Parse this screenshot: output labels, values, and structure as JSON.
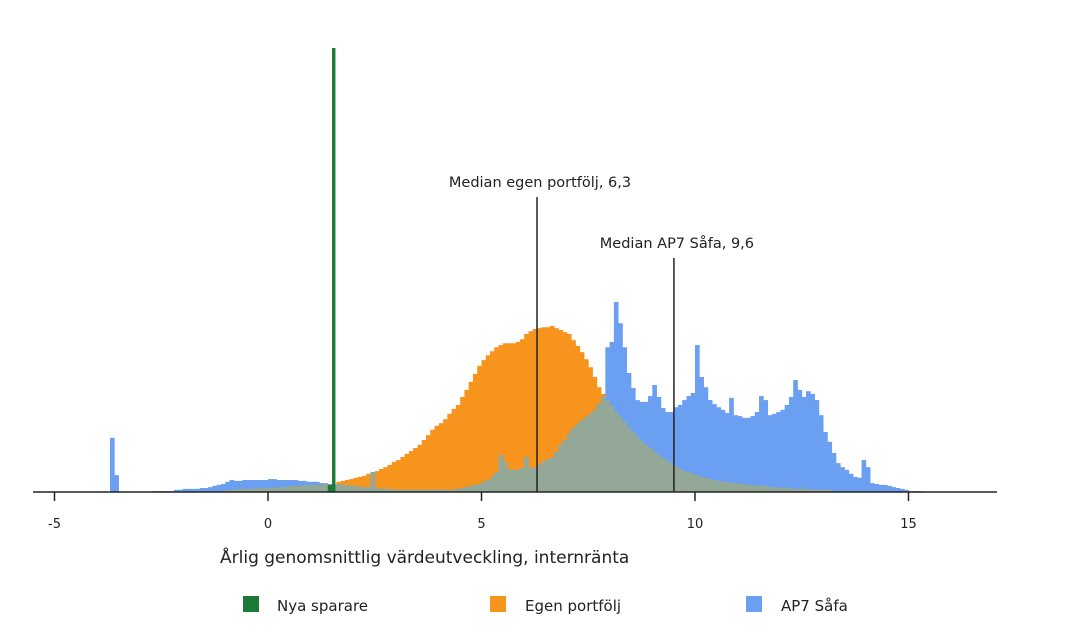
{
  "chart_data": {
    "type": "bar",
    "subtype": "overlapping-histogram",
    "title": "",
    "xlabel": "Årlig genomsnittlig värdeutveckling, internränta",
    "ylabel": "",
    "xlim": [
      -5.5,
      17
    ],
    "ylim": [
      0,
      100
    ],
    "x_ticks": [
      -5,
      0,
      5,
      10,
      15
    ],
    "x_tick_labels": [
      "-5",
      "0",
      "5",
      "10",
      "15"
    ],
    "y_axis_visible": false,
    "grid": false,
    "legend_position": "bottom",
    "bin_width": 0.1,
    "bin_start": -4.0,
    "overlap_color": "#94a898",
    "series": [
      {
        "name": "Nya sparare",
        "color": "#1b7a36",
        "x": [
          1.4,
          1.5
        ],
        "values": [
          1.6,
          100
        ]
      },
      {
        "name": "Egen portfölj",
        "color": "#f7941d",
        "values": [
          0,
          0,
          0,
          0,
          0,
          0,
          0,
          0,
          0,
          0,
          0,
          0,
          0,
          0,
          0,
          0,
          0,
          0,
          0,
          0,
          0,
          0,
          0,
          0,
          0,
          0.2,
          0.2,
          0.2,
          0.2,
          0.2,
          0.5,
          0.5,
          0.5,
          0.7,
          0.7,
          0.7,
          0.7,
          0.7,
          0.9,
          0.9,
          0.9,
          0.9,
          1.1,
          1.1,
          1.1,
          1.4,
          1.4,
          1.4,
          1.6,
          1.6,
          1.6,
          1.6,
          1.6,
          1.8,
          1.8,
          1.8,
          2.3,
          2.5,
          2.7,
          2.9,
          3.2,
          3.4,
          3.6,
          4.1,
          4.5,
          4.7,
          5.2,
          5.6,
          6.1,
          6.8,
          7.2,
          7.9,
          8.6,
          9.2,
          9.9,
          10.6,
          11.7,
          12.8,
          14.0,
          14.9,
          15.5,
          16.4,
          17.6,
          18.7,
          19.6,
          21.4,
          23.0,
          24.8,
          26.6,
          28.4,
          29.7,
          30.8,
          31.7,
          32.6,
          33.1,
          33.5,
          33.5,
          33.5,
          33.8,
          34.4,
          35.6,
          36.2,
          36.7,
          36.9,
          37.1,
          37.1,
          37.4,
          36.9,
          36.5,
          36.0,
          35.6,
          34.2,
          32.9,
          31.5,
          29.9,
          28.1,
          25.9,
          23.6,
          22.1,
          20.7,
          19.4,
          18.0,
          16.9,
          15.8,
          14.6,
          13.5,
          12.4,
          11.5,
          10.6,
          9.9,
          9.2,
          8.3,
          7.7,
          7.0,
          6.5,
          5.9,
          5.2,
          4.7,
          4.5,
          4.1,
          3.8,
          3.4,
          3.2,
          2.9,
          2.7,
          2.5,
          2.3,
          2.3,
          2.0,
          2.0,
          1.8,
          1.8,
          1.6,
          1.6,
          1.4,
          1.4,
          1.4,
          1.1,
          1.1,
          1.1,
          0.9,
          0.9,
          0.9,
          0.7,
          0.7,
          0.7,
          0.7,
          0.5,
          0.5,
          0.5,
          0.5,
          0.5,
          0.2,
          0.2,
          0.2,
          0.2,
          0.2,
          0.2,
          0.2,
          0.2,
          0,
          0,
          0,
          0,
          0,
          0,
          0,
          0,
          0,
          0,
          0,
          0,
          0,
          0
        ]
      },
      {
        "name": "AP7 Såfa",
        "color": "#6a9ff2",
        "values": [
          0,
          0,
          0,
          12.2,
          3.8,
          0,
          0,
          0,
          0,
          0,
          0,
          0,
          0,
          0.2,
          0.2,
          0.2,
          0.2,
          0.2,
          0.5,
          0.5,
          0.7,
          0.7,
          0.7,
          0.7,
          0.9,
          0.9,
          1.1,
          1.4,
          1.6,
          1.8,
          2.3,
          2.7,
          2.5,
          2.5,
          2.7,
          2.7,
          2.7,
          2.7,
          2.7,
          2.7,
          2.9,
          2.9,
          2.7,
          2.7,
          2.7,
          2.7,
          2.7,
          2.5,
          2.5,
          2.3,
          2.3,
          2.3,
          2.0,
          2.0,
          1.8,
          1.8,
          1.8,
          1.6,
          1.6,
          1.4,
          1.4,
          1.1,
          1.1,
          1.1,
          4.5,
          0.9,
          0.7,
          0.7,
          0.7,
          0.5,
          0.5,
          0.5,
          0.5,
          0.5,
          0.5,
          0.5,
          0.5,
          0.5,
          0.5,
          0.5,
          0.5,
          0.5,
          0.5,
          0.5,
          0.7,
          0.9,
          1.1,
          1.4,
          1.6,
          1.8,
          2.3,
          2.7,
          3.4,
          4.5,
          8.3,
          6.8,
          5.0,
          5.0,
          5.0,
          5.4,
          7.9,
          5.4,
          5.6,
          6.1,
          6.8,
          7.4,
          7.7,
          9.0,
          10.6,
          11.7,
          13.1,
          14.4,
          15.3,
          16.2,
          16.9,
          17.6,
          18.5,
          19.8,
          21.4,
          32.6,
          33.8,
          42.8,
          38.0,
          32.6,
          26.8,
          23.4,
          20.7,
          20.3,
          20.3,
          21.6,
          24.1,
          21.4,
          18.9,
          18.0,
          18.0,
          19.1,
          19.6,
          20.7,
          21.6,
          22.3,
          33.1,
          25.9,
          23.6,
          20.7,
          19.8,
          19.1,
          18.5,
          17.8,
          21.2,
          17.3,
          17.1,
          16.7,
          16.7,
          17.1,
          18.0,
          21.6,
          20.7,
          17.3,
          17.6,
          18.0,
          18.5,
          19.6,
          21.4,
          25.2,
          23.0,
          21.4,
          22.7,
          22.1,
          20.7,
          17.3,
          13.5,
          11.3,
          8.8,
          6.5,
          5.6,
          5.0,
          4.1,
          3.4,
          3.2,
          7.2,
          5.6,
          2.0,
          1.8,
          1.6,
          1.6,
          1.4,
          1.1,
          0.9,
          0.7,
          0.5,
          0.2,
          0.2,
          0.2,
          0
        ]
      }
    ],
    "annotations": [
      {
        "label": "Median egen portfölj, 6,3",
        "x": 6.3
      },
      {
        "label": "Median AP7 Såfa, 9,6",
        "x": 9.6
      }
    ]
  }
}
